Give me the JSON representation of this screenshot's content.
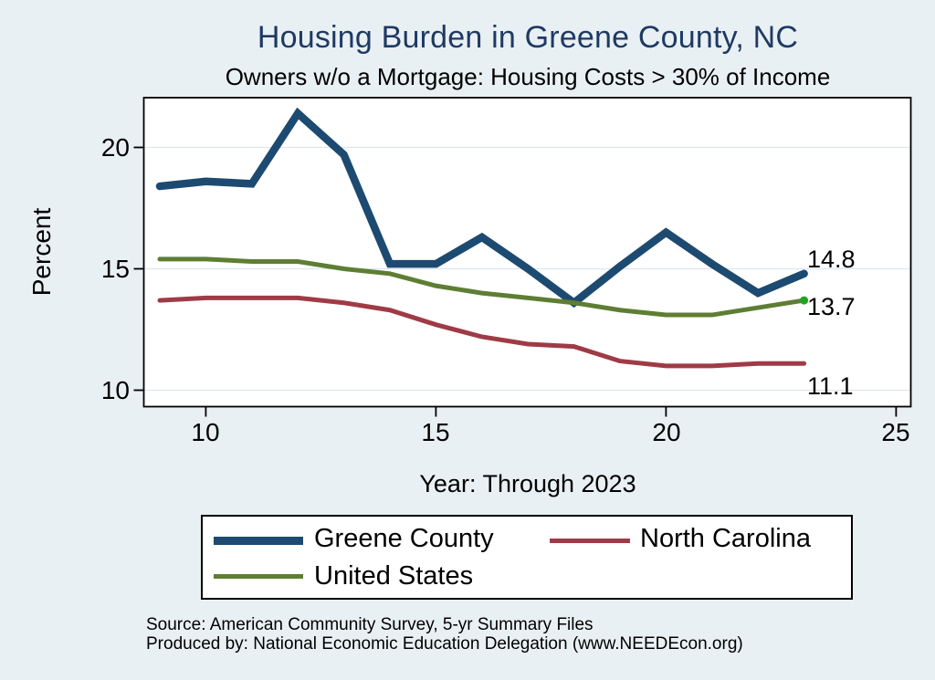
{
  "chart_data": {
    "type": "line",
    "title": "Housing Burden in Greene County, NC",
    "subtitle": "Owners w/o a Mortgage: Housing Costs > 30% of Income",
    "ylabel": "Percent",
    "xlabel": "Year: Through 2023",
    "x": [
      9,
      10,
      11,
      12,
      13,
      14,
      15,
      16,
      17,
      18,
      19,
      20,
      21,
      22,
      23
    ],
    "series": [
      {
        "name": "Greene County",
        "color": "#1d4a70",
        "line_width": 8.5,
        "values": [
          18.4,
          18.6,
          18.5,
          21.4,
          19.7,
          15.2,
          15.2,
          16.3,
          15.0,
          13.6,
          15.1,
          16.5,
          15.2,
          14.0,
          14.8
        ],
        "end_label": "14.8"
      },
      {
        "name": "North Carolina",
        "color": "#9f3b46",
        "line_width": 5,
        "values": [
          13.7,
          13.8,
          13.8,
          13.8,
          13.6,
          13.3,
          12.7,
          12.2,
          11.9,
          11.8,
          11.2,
          11.0,
          11.0,
          11.1,
          11.1
        ],
        "end_label": "11.1"
      },
      {
        "name": "United States",
        "color": "#5e7e33",
        "line_width": 5,
        "values": [
          15.4,
          15.4,
          15.3,
          15.3,
          15.0,
          14.8,
          14.3,
          14.0,
          13.8,
          13.6,
          13.3,
          13.1,
          13.1,
          13.4,
          13.7
        ],
        "end_label": "13.7",
        "end_marker": true,
        "end_marker_color": "#1fa41f"
      }
    ],
    "xtick_labels": [
      "10",
      "15",
      "20",
      "25"
    ],
    "xtick_values": [
      10,
      15,
      20,
      25
    ],
    "ytick_labels": [
      "20",
      "15",
      "10"
    ],
    "ytick_values": [
      20,
      15,
      10
    ],
    "xlim": [
      8.65,
      25.3
    ],
    "ylim": [
      9.3,
      22.05
    ],
    "grid": "horizontal",
    "legend_position": "bottom"
  },
  "colors": {
    "background": "#e9f0f4",
    "plot_background": "#ffffff",
    "title": "#1e3a63",
    "gridline": "#dce8f0",
    "axis": "#000000"
  },
  "source": {
    "line1": "Source: American Community Survey, 5-yr Summary Files",
    "line2": "Produced by: National Economic Education Delegation (www.NEEDEcon.org)"
  }
}
